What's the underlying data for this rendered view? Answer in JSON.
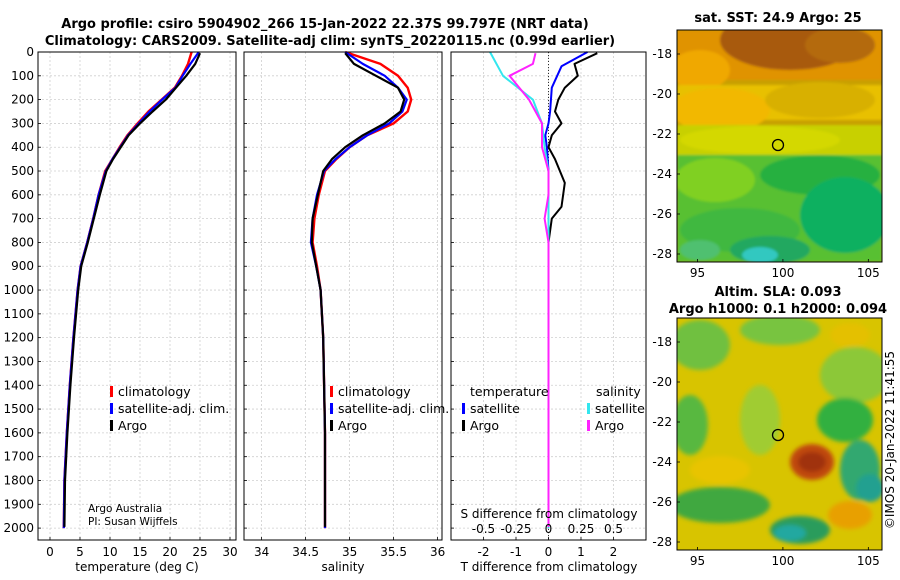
{
  "titles": {
    "line1": "Argo profile: csiro 5904902_266 15-Jan-2022 22.37S 99.797E (NRT data)",
    "line2": "Climatology: CARS2009. Satellite-adj clim: synTS_20220115.nc (0.99d earlier)",
    "sst": "sat. SST: 24.9 Argo: 25",
    "altim1": "Altim. SLA: 0.093",
    "altim2": "Argo h1000: 0.1 h2000: 0.094"
  },
  "credit": {
    "line1": "Argo Australia",
    "line2": "PI: Susan Wijffels"
  },
  "watermark": "©IMOS 20-Jan-2022 11:41:55",
  "colors": {
    "climatology": "#ff0000",
    "satellite": "#0000ff",
    "argo": "#000000",
    "sal_satellite": "#33e6ee",
    "sal_argo": "#ff22ff"
  },
  "chart_data": [
    {
      "type": "line",
      "id": "temperature",
      "xlabel": "temperature (deg C)",
      "ylabel": "",
      "xlim": [
        -2,
        31
      ],
      "ylim": [
        0,
        2050
      ],
      "x_ticks": [
        "0",
        "5",
        "10",
        "15",
        "20",
        "25",
        "30"
      ],
      "y_ticks": [
        "0",
        "100",
        "200",
        "300",
        "400",
        "500",
        "600",
        "700",
        "800",
        "900",
        "1000",
        "1100",
        "1200",
        "1300",
        "1400",
        "1500",
        "1600",
        "1700",
        "1800",
        "1900",
        "2000"
      ],
      "legend": [
        "climatology",
        "satellite-adj. clim.",
        "Argo"
      ],
      "series": [
        {
          "name": "climatology",
          "x": [
            23.6,
            23.0,
            22.0,
            20.8,
            18.6,
            16.4,
            14.6,
            12.9,
            11.6,
            10.4,
            9.2,
            8.1,
            7.2,
            6.2,
            5.1,
            4.6,
            3.9,
            3.3,
            2.8,
            2.4,
            2.3
          ],
          "y": [
            0,
            50,
            100,
            150,
            200,
            250,
            300,
            350,
            400,
            450,
            500,
            600,
            700,
            800,
            900,
            1000,
            1200,
            1400,
            1600,
            1800,
            2000
          ]
        },
        {
          "name": "satellite-adj. clim.",
          "x": [
            24.8,
            23.4,
            22.1,
            20.9,
            18.7,
            16.6,
            14.8,
            13.0,
            11.7,
            10.4,
            9.3,
            8.1,
            7.2,
            6.2,
            5.1,
            4.6,
            3.9,
            3.3,
            2.8,
            2.4,
            2.3
          ],
          "y": [
            0,
            50,
            100,
            150,
            200,
            250,
            300,
            350,
            400,
            450,
            500,
            600,
            700,
            800,
            900,
            1000,
            1200,
            1400,
            1600,
            1800,
            2000
          ]
        },
        {
          "name": "Argo",
          "x": [
            25.0,
            24.2,
            22.7,
            21.0,
            19.3,
            17.1,
            15.0,
            13.1,
            11.8,
            10.5,
            9.4,
            8.3,
            7.3,
            6.3,
            5.2,
            4.7,
            4.0,
            3.4,
            2.9,
            2.5,
            2.4
          ],
          "y": [
            5,
            50,
            100,
            150,
            200,
            250,
            300,
            350,
            400,
            450,
            500,
            600,
            700,
            800,
            900,
            1000,
            1200,
            1400,
            1600,
            1800,
            1995
          ]
        }
      ]
    },
    {
      "type": "line",
      "id": "salinity",
      "xlabel": "salinity",
      "ylabel": "",
      "xlim": [
        33.8,
        36.05
      ],
      "ylim": [
        0,
        2050
      ],
      "x_ticks": [
        "34",
        "34.5",
        "35",
        "35.5",
        "36"
      ],
      "legend": [
        "climatology",
        "satellite-adj. clim.",
        "Argo"
      ],
      "series": [
        {
          "name": "climatology",
          "x": [
            34.95,
            35.35,
            35.55,
            35.66,
            35.7,
            35.66,
            35.5,
            35.2,
            35.0,
            34.85,
            34.72,
            34.65,
            34.6,
            34.58,
            34.63,
            34.67,
            34.7,
            34.71,
            34.72,
            34.72,
            34.72
          ],
          "y": [
            0,
            50,
            100,
            150,
            200,
            250,
            300,
            350,
            400,
            450,
            500,
            600,
            700,
            800,
            900,
            1000,
            1200,
            1400,
            1600,
            1800,
            2000
          ]
        },
        {
          "name": "satellite-adj. clim.",
          "x": [
            34.95,
            35.15,
            35.4,
            35.55,
            35.65,
            35.6,
            35.45,
            35.2,
            35.0,
            34.84,
            34.71,
            34.63,
            34.58,
            34.56,
            34.62,
            34.67,
            34.7,
            34.71,
            34.72,
            34.72,
            34.72
          ],
          "y": [
            0,
            50,
            100,
            150,
            200,
            250,
            300,
            350,
            400,
            450,
            500,
            600,
            700,
            800,
            900,
            1000,
            1200,
            1400,
            1600,
            1800,
            2000
          ]
        },
        {
          "name": "Argo",
          "x": [
            34.95,
            35.05,
            35.3,
            35.55,
            35.62,
            35.58,
            35.4,
            35.15,
            34.95,
            34.8,
            34.7,
            34.64,
            34.58,
            34.57,
            34.62,
            34.67,
            34.7,
            34.71,
            34.72,
            34.72,
            34.72
          ],
          "y": [
            5,
            50,
            100,
            150,
            200,
            250,
            300,
            350,
            400,
            450,
            500,
            600,
            700,
            800,
            900,
            1000,
            1200,
            1400,
            1600,
            1800,
            1995
          ]
        }
      ]
    },
    {
      "type": "line",
      "id": "difference",
      "xlabel": "T difference from climatology",
      "xlabel_top": "S difference from climatology",
      "xlim": [
        -3,
        3
      ],
      "ylim": [
        0,
        2050
      ],
      "x_ticks": [
        "-2",
        "-1",
        "0",
        "1",
        "2"
      ],
      "s_ticks": [
        "-0.5",
        "-0.25",
        "0",
        "0.25",
        "0.5"
      ],
      "legend_headers": [
        "temperature",
        "salinity"
      ],
      "legend": [
        "satellite",
        "Argo",
        "satellite",
        "Argo"
      ],
      "series": [
        {
          "name": "temperature satellite",
          "x": [
            1.2,
            0.4,
            0.1,
            0.05,
            0.0,
            -0.1,
            -0.05,
            0.0,
            0.0,
            0.0,
            0.0,
            0.0,
            0.0,
            0.0,
            0.0,
            0.0,
            0.0,
            0.0,
            0.0,
            0.0
          ],
          "y": [
            0,
            60,
            150,
            250,
            300,
            350,
            400,
            500,
            600,
            700,
            800,
            900,
            1000,
            1200,
            1400,
            1500,
            1600,
            1800,
            1900,
            2000
          ]
        },
        {
          "name": "temperature Argo",
          "x": [
            1.5,
            0.8,
            0.9,
            0.5,
            0.3,
            0.2,
            0.4,
            0.1,
            0.0,
            0.2,
            0.5,
            0.4,
            0.1,
            0.0,
            0.0,
            0.0,
            0.0,
            0.0,
            0.0,
            0.0,
            0.0,
            0.0
          ],
          "y": [
            5,
            50,
            100,
            150,
            200,
            250,
            300,
            350,
            400,
            450,
            550,
            650,
            700,
            800,
            900,
            1000,
            1200,
            1400,
            1600,
            1800,
            1900,
            1995
          ]
        },
        {
          "name": "salinity satellite",
          "x": [
            -0.45,
            -0.35,
            -0.12,
            -0.05,
            -0.03,
            0.0,
            0.0,
            0.0,
            0.0,
            0.0,
            0.0,
            0.0,
            0.0,
            0.0
          ],
          "y": [
            0,
            100,
            200,
            300,
            400,
            500,
            600,
            700,
            800,
            1000,
            1200,
            1600,
            1800,
            2000
          ]
        },
        {
          "name": "salinity Argo",
          "x": [
            -0.1,
            -0.12,
            -0.3,
            -0.15,
            -0.05,
            -0.05,
            0.0,
            0.0,
            -0.03,
            0.0,
            0.0,
            0.0,
            0.0,
            0.0,
            0.0
          ],
          "y": [
            5,
            50,
            100,
            200,
            300,
            400,
            500,
            600,
            700,
            800,
            1000,
            1200,
            1600,
            1800,
            1995
          ]
        }
      ]
    },
    {
      "type": "heatmap",
      "id": "sst_map",
      "title": "sat. SST: 24.9 Argo: 25",
      "xlim": [
        93.8,
        105.8
      ],
      "ylim": [
        -28.4,
        -16.8
      ],
      "x_ticks": [
        "95",
        "100",
        "105"
      ],
      "y_ticks": [
        "-18",
        "-20",
        "-22",
        "-24",
        "-26",
        "-28"
      ],
      "marker": {
        "lon": 99.797,
        "lat": -22.37
      }
    },
    {
      "type": "heatmap",
      "id": "sla_map",
      "title": "Altim. SLA: 0.093",
      "xlim": [
        93.8,
        105.8
      ],
      "ylim": [
        -28.4,
        -16.8
      ],
      "x_ticks": [
        "95",
        "100",
        "105"
      ],
      "y_ticks": [
        "-18",
        "-20",
        "-22",
        "-24",
        "-26",
        "-28"
      ],
      "marker": {
        "lon": 99.797,
        "lat": -22.37
      }
    }
  ]
}
